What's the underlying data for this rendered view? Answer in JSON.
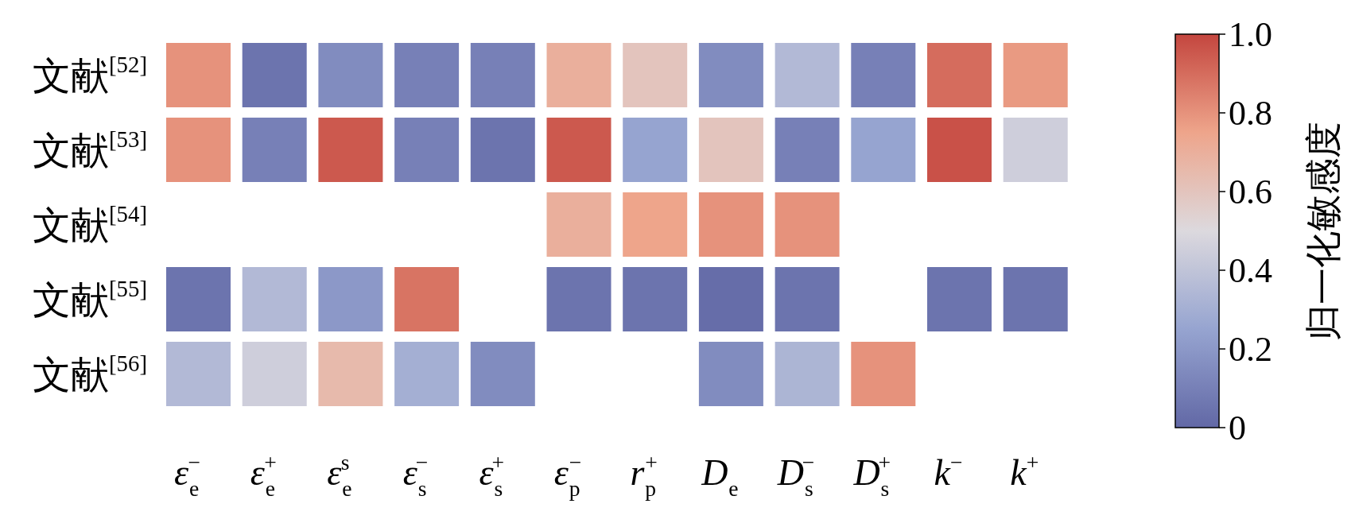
{
  "chart_data": {
    "type": "heatmap",
    "clabel": "归一化敏感度",
    "categories": [
      "ε$_{e}$$^{−}$",
      "ε$_{e}$$^{+}$",
      "ε$_{e}$$^{s}$",
      "ε$_{s}$$^{−}$",
      "ε$_{s}$$^{+}$",
      "ε$_{p}$$^{−}$",
      "r$_{p}$$^{+}$",
      "D$_{e}$",
      "D$_{s}$$^{−}$",
      "D$_{s}$$^{+}$",
      "k$^{−}$",
      "k$^{+}$"
    ],
    "y_categories": [
      "文献$^{[52]}$",
      "文献$^{[53]}$",
      "文献$^{[54]}$",
      "文献$^{[55]}$",
      "文献$^{[56]}$"
    ],
    "cells": [
      [
        0.8,
        0.05,
        0.15,
        0.1,
        0.1,
        0.7,
        0.6,
        0.15,
        0.35,
        0.1,
        0.9,
        0.78
      ],
      [
        0.8,
        0.1,
        0.95,
        0.1,
        0.05,
        0.95,
        0.25,
        0.6,
        0.1,
        0.25,
        0.97,
        0.45
      ],
      [
        null,
        null,
        null,
        null,
        null,
        0.7,
        0.75,
        0.8,
        0.8,
        null,
        null,
        null
      ],
      [
        0.05,
        0.35,
        0.2,
        0.88,
        null,
        0.05,
        0.05,
        0.02,
        0.05,
        null,
        0.05,
        0.05
      ],
      [
        0.35,
        0.45,
        0.65,
        0.3,
        0.15,
        null,
        null,
        0.15,
        0.33,
        0.8,
        null,
        null
      ]
    ],
    "clim": [
      0,
      1
    ],
    "cticks": [
      0,
      0.2,
      0.4,
      0.6,
      0.8,
      {
        "value": 1,
        "label": "1.0"
      }
    ]
  }
}
